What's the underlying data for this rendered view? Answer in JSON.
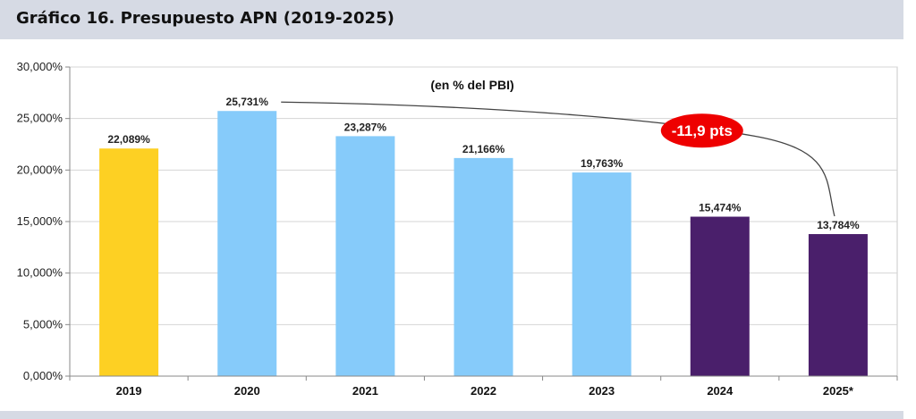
{
  "header": {
    "title": "Gráfico 16. Presupuesto APN (2019-2025)"
  },
  "chart_data": {
    "type": "bar",
    "subtitle": "(en % del PBI)",
    "categories": [
      "2019",
      "2020",
      "2021",
      "2022",
      "2023",
      "2024",
      "2025*"
    ],
    "values": [
      22.089,
      25.731,
      23.287,
      21.166,
      19.763,
      15.474,
      13.784
    ],
    "value_labels": [
      "22,089%",
      "25,731%",
      "23,287%",
      "21,166%",
      "19,763%",
      "15,474%",
      "13,784%"
    ],
    "bar_colors": [
      "#fdd023",
      "#86cbfa",
      "#86cbfa",
      "#86cbfa",
      "#86cbfa",
      "#4a1f6b",
      "#4a1f6b"
    ],
    "ylim": [
      0,
      30
    ],
    "yticks": [
      0,
      5,
      10,
      15,
      20,
      25,
      30
    ],
    "ytick_labels": [
      "0,000%",
      "5,000%",
      "10,000%",
      "15,000%",
      "20,000%",
      "25,000%",
      "30,000%"
    ],
    "grid": true,
    "annotation": {
      "text": "-11,9 pts",
      "from_category": "2020",
      "to_category": "2025*",
      "color": "#ee0000"
    }
  }
}
